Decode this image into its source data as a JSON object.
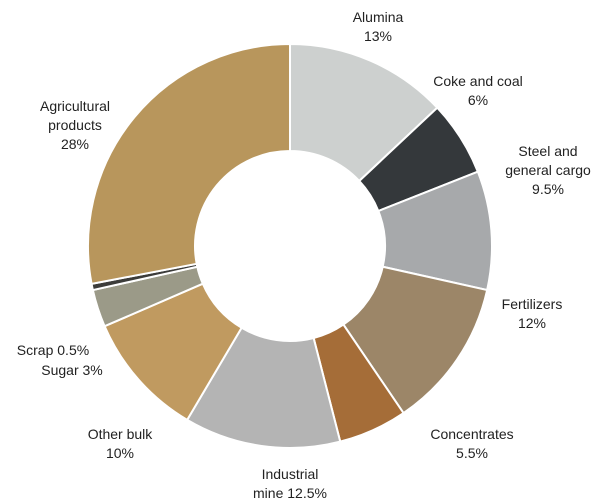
{
  "chart_data": {
    "type": "donut",
    "categories": [
      "Alumina",
      "Coke and coal",
      "Steel and general cargo",
      "Fertilizers",
      "Concentrates",
      "Industrial mine",
      "Other bulk",
      "Sugar",
      "Scrap",
      "Agricultural products"
    ],
    "values": [
      13,
      6,
      9.5,
      12,
      5.5,
      12.5,
      10,
      3,
      0.5,
      28
    ],
    "value_labels": [
      "13%",
      "6%",
      "9.5%",
      "12%",
      "5.5%",
      "12.5%",
      "10%",
      "3%",
      "0.5%",
      "28%"
    ],
    "colors": [
      "#cdd0cf",
      "#34383b",
      "#a7a9ab",
      "#9c8668",
      "#a56d38",
      "#b4b4b4",
      "#c09a60",
      "#9b9a88",
      "#3c3c3a",
      "#b8965c"
    ]
  }
}
